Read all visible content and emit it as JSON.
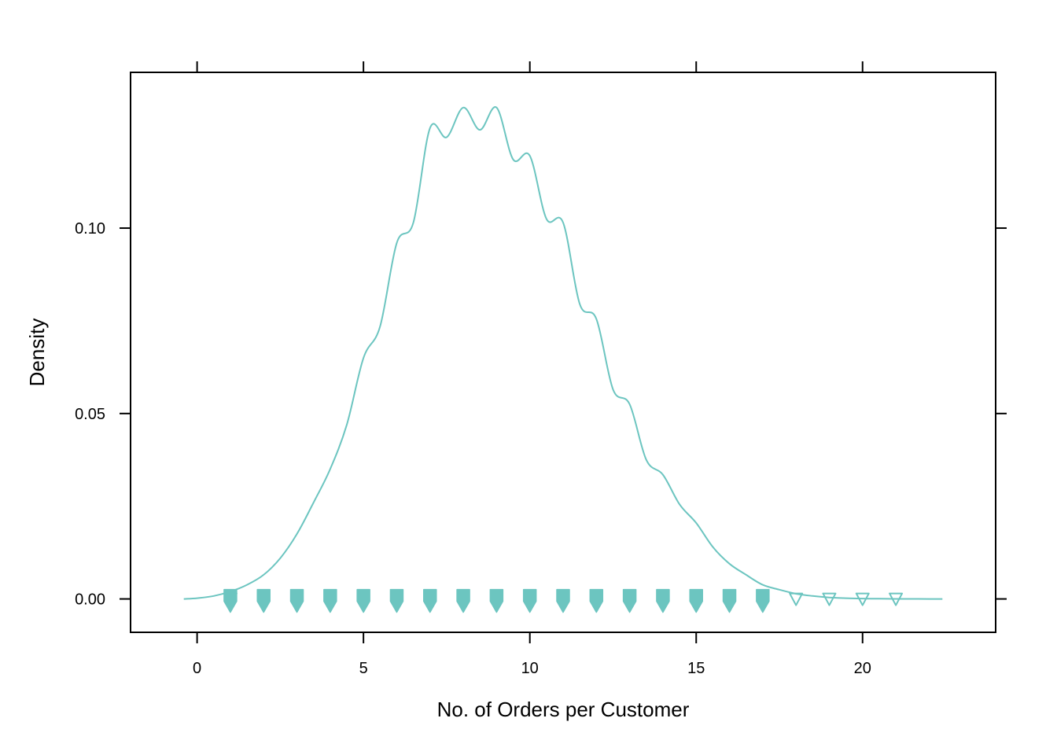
{
  "chart_data": {
    "type": "density",
    "title": "",
    "xlabel": "No. of Orders per Customer",
    "ylabel": "Density",
    "xlim": [
      -2,
      24
    ],
    "ylim": [
      -0.009,
      0.142
    ],
    "xticks": [
      0,
      5,
      10,
      15,
      20
    ],
    "xtick_labels": [
      "0",
      "5",
      "10",
      "15",
      "20"
    ],
    "yticks": [
      0.0,
      0.05,
      0.1
    ],
    "ytick_labels": [
      "0.00",
      "0.05",
      "0.10"
    ],
    "grid": false,
    "color": "#6cc5c0",
    "series": [
      {
        "x": [
          -0.4,
          0,
          0.5,
          1,
          1.5,
          2,
          2.5,
          3,
          3.5,
          4,
          4.5,
          5,
          5.5,
          6,
          6.5,
          7,
          7.5,
          8,
          8.5,
          9,
          9.5,
          10,
          10.5,
          11,
          11.5,
          12,
          12.5,
          13,
          13.5,
          14,
          14.5,
          15,
          15.5,
          16,
          16.5,
          17,
          17.5,
          18,
          18.5,
          19,
          19.5,
          20,
          20.5,
          21,
          21.5,
          22,
          22.4
        ],
        "y": [
          0.0,
          0.0002,
          0.0008,
          0.002,
          0.0038,
          0.0065,
          0.011,
          0.0175,
          0.026,
          0.035,
          0.047,
          0.065,
          0.0735,
          0.096,
          0.1015,
          0.127,
          0.1245,
          0.1325,
          0.1265,
          0.1325,
          0.1185,
          0.1195,
          0.1025,
          0.1015,
          0.0795,
          0.0755,
          0.0565,
          0.0525,
          0.0375,
          0.0335,
          0.0255,
          0.0205,
          0.014,
          0.0095,
          0.0065,
          0.0038,
          0.0025,
          0.0014,
          0.0008,
          0.0004,
          0.0002,
          0.0001,
          5e-05,
          2e-05,
          1e-05,
          0.0,
          0.0
        ]
      }
    ],
    "rug": {
      "symbol": "triangle-down",
      "filled_x": [
        1,
        2,
        3,
        4,
        5,
        6,
        7,
        8,
        9,
        10,
        11,
        12,
        13,
        14,
        15,
        16,
        17
      ],
      "open_x": [
        1,
        18,
        19,
        20,
        21
      ]
    }
  }
}
